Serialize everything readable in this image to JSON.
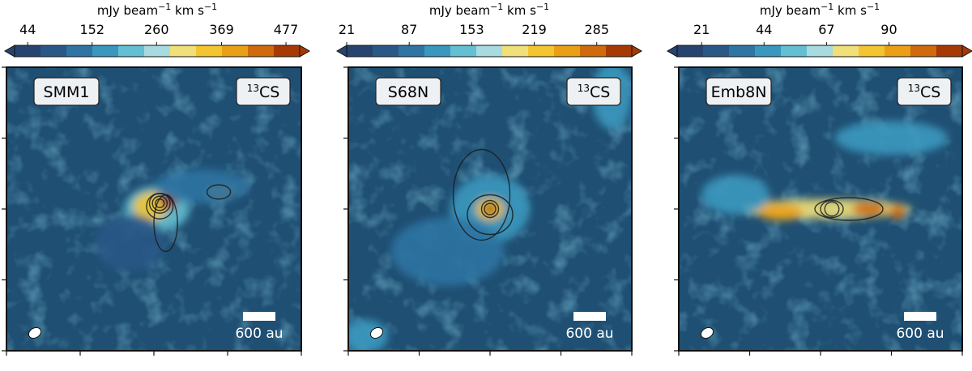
{
  "chart_data": [
    {
      "type": "heatmap",
      "source_label": "SMM1",
      "molecule_label": "13CS",
      "molecule_mass": "13",
      "molecule_name": "CS",
      "colorbar": {
        "title_prefix": "mJy beam",
        "title_exp": "−1",
        "title_mid": " km s",
        "title_exp2": "−1",
        "ticks": [
          44,
          152,
          260,
          369,
          477
        ],
        "tick_labels": [
          "44",
          "152",
          "260",
          "369",
          "477"
        ],
        "range": [
          22,
          500
        ],
        "extend": "both"
      },
      "scalebar_label": "600 au",
      "blobs": [
        {
          "x": 0.51,
          "y": 0.5,
          "rx": 0.11,
          "ry": 0.08,
          "v": 0.35
        },
        {
          "x": 0.49,
          "y": 0.49,
          "rx": 0.06,
          "ry": 0.05,
          "v": 0.65
        },
        {
          "x": 0.55,
          "y": 0.47,
          "rx": 0.03,
          "ry": 0.03,
          "v": 0.95
        },
        {
          "x": 0.73,
          "y": 0.44,
          "rx": 0.05,
          "ry": 0.025,
          "v": 0.75
        },
        {
          "x": 0.66,
          "y": 0.42,
          "rx": 0.16,
          "ry": 0.06,
          "v": 0.22
        },
        {
          "x": 0.42,
          "y": 0.62,
          "rx": 0.12,
          "ry": 0.1,
          "v": 0.12
        }
      ],
      "contours": [
        {
          "x": 0.52,
          "y": 0.49,
          "rx": 0.045,
          "ry": 0.045
        },
        {
          "x": 0.52,
          "y": 0.48,
          "rx": 0.035,
          "ry": 0.035
        },
        {
          "x": 0.52,
          "y": 0.48,
          "rx": 0.025,
          "ry": 0.025
        },
        {
          "x": 0.52,
          "y": 0.48,
          "rx": 0.015,
          "ry": 0.015
        },
        {
          "x": 0.54,
          "y": 0.55,
          "rx": 0.04,
          "ry": 0.1
        },
        {
          "x": 0.72,
          "y": 0.44,
          "rx": 0.04,
          "ry": 0.025
        }
      ]
    },
    {
      "type": "heatmap",
      "source_label": "S68N",
      "molecule_label": "13CS",
      "molecule_mass": "13",
      "molecule_name": "CS",
      "colorbar": {
        "title_prefix": "mJy beam",
        "title_exp": "−1",
        "title_mid": " km s",
        "title_exp2": "−1",
        "ticks": [
          21,
          87,
          153,
          219,
          285
        ],
        "tick_labels": [
          "21",
          "87",
          "153",
          "219",
          "285"
        ],
        "range": [
          21,
          322
        ],
        "extend": "both"
      },
      "scalebar_label": "600 au",
      "blobs": [
        {
          "x": 0.5,
          "y": 0.5,
          "rx": 0.14,
          "ry": 0.12,
          "v": 0.25
        },
        {
          "x": 0.5,
          "y": 0.5,
          "rx": 0.05,
          "ry": 0.04,
          "v": 0.7
        },
        {
          "x": 0.5,
          "y": 0.5,
          "rx": 0.02,
          "ry": 0.02,
          "v": 1.0
        },
        {
          "x": 0.35,
          "y": 0.65,
          "rx": 0.2,
          "ry": 0.12,
          "v": 0.15
        },
        {
          "x": 0.93,
          "y": 0.1,
          "rx": 0.07,
          "ry": 0.12,
          "v": 0.3
        },
        {
          "x": 0.06,
          "y": 0.95,
          "rx": 0.08,
          "ry": 0.06,
          "v": 0.3
        }
      ],
      "contours": [
        {
          "x": 0.5,
          "y": 0.5,
          "rx": 0.03,
          "ry": 0.03
        },
        {
          "x": 0.5,
          "y": 0.5,
          "rx": 0.02,
          "ry": 0.02
        },
        {
          "x": 0.5,
          "y": 0.52,
          "rx": 0.08,
          "ry": 0.07
        },
        {
          "x": 0.47,
          "y": 0.45,
          "rx": 0.1,
          "ry": 0.16
        }
      ]
    },
    {
      "type": "heatmap",
      "source_label": "Emb8N",
      "molecule_label": "13CS",
      "molecule_mass": "13",
      "molecule_name": "CS",
      "colorbar": {
        "title_prefix": "mJy beam",
        "title_exp": "−1",
        "title_mid": " km s",
        "title_exp2": "−1",
        "ticks": [
          21,
          44,
          67,
          90
        ],
        "tick_labels": [
          "21",
          "44",
          "67",
          "90"
        ],
        "range": [
          12,
          117
        ],
        "extend": "both"
      },
      "scalebar_label": "600 au",
      "blobs": [
        {
          "x": 0.52,
          "y": 0.5,
          "rx": 0.3,
          "ry": 0.035,
          "v": 0.55
        },
        {
          "x": 0.36,
          "y": 0.51,
          "rx": 0.08,
          "ry": 0.03,
          "v": 0.8
        },
        {
          "x": 0.67,
          "y": 0.5,
          "rx": 0.06,
          "ry": 0.025,
          "v": 0.9
        },
        {
          "x": 0.77,
          "y": 0.51,
          "rx": 0.03,
          "ry": 0.025,
          "v": 0.85
        },
        {
          "x": 0.75,
          "y": 0.25,
          "rx": 0.2,
          "ry": 0.06,
          "v": 0.3
        },
        {
          "x": 0.2,
          "y": 0.45,
          "rx": 0.12,
          "ry": 0.07,
          "v": 0.25
        }
      ],
      "contours": [
        {
          "x": 0.54,
          "y": 0.5,
          "rx": 0.025,
          "ry": 0.025
        },
        {
          "x": 0.54,
          "y": 0.5,
          "rx": 0.04,
          "ry": 0.03
        },
        {
          "x": 0.6,
          "y": 0.5,
          "rx": 0.12,
          "ry": 0.04
        }
      ]
    }
  ],
  "colors": {
    "background": "#1f4f73",
    "colormap": [
      "#27436f",
      "#2a5886",
      "#2f74a2",
      "#3a98bf",
      "#64bfd2",
      "#a8dbe0",
      "#f0e07a",
      "#f2c531",
      "#e9a017",
      "#cf6a0d",
      "#a63a05"
    ]
  }
}
